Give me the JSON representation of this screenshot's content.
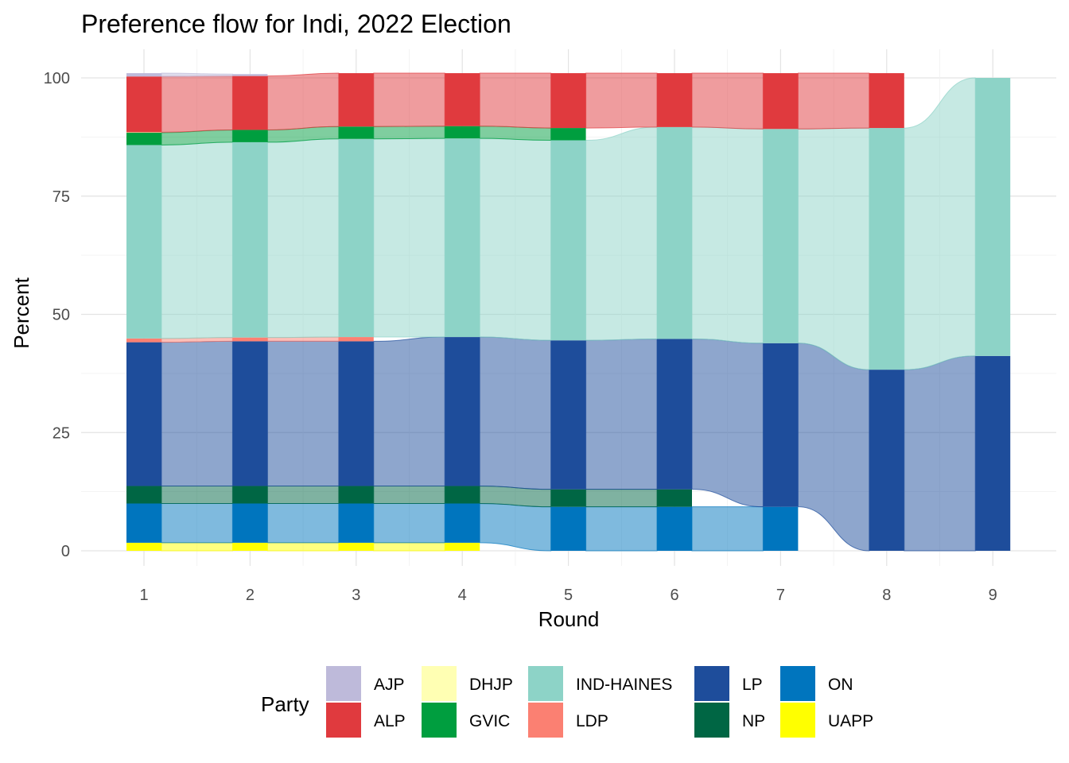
{
  "chart_data": {
    "type": "area",
    "title": "Preference flow for Indi, 2022 Election",
    "xlabel": "Round",
    "ylabel": "Percent",
    "x_ticks": [
      "1",
      "2",
      "3",
      "4",
      "5",
      "6",
      "7",
      "8",
      "9"
    ],
    "y_ticks": [
      "0",
      "25",
      "50",
      "75",
      "100"
    ],
    "ylim": [
      0,
      100
    ],
    "grid": true,
    "legend": {
      "title": "Party",
      "placement": "bottom",
      "entries": [
        {
          "name": "AJP",
          "color": "#BEBADA"
        },
        {
          "name": "ALP",
          "color": "#E03A3E"
        },
        {
          "name": "DHJP",
          "color": "#FFFFB3"
        },
        {
          "name": "GVIC",
          "color": "#009E3F"
        },
        {
          "name": "IND-HAINES",
          "color": "#8DD3C7"
        },
        {
          "name": "LDP",
          "color": "#FB8072"
        },
        {
          "name": "LP",
          "color": "#1E4D9B"
        },
        {
          "name": "NP",
          "color": "#006644"
        },
        {
          "name": "ON",
          "color": "#0075BE"
        },
        {
          "name": "UAPP",
          "color": "#FFFF00"
        }
      ]
    },
    "stack_order": [
      "UAPP",
      "ON",
      "NP",
      "LP",
      "LDP",
      "IND-HAINES",
      "GVIC",
      "DHJP",
      "ALP",
      "AJP"
    ],
    "rounds": [
      1,
      2,
      3,
      4,
      5,
      6,
      7,
      8,
      9
    ],
    "series": [
      {
        "name": "UAPP",
        "values": [
          1.7,
          1.7,
          1.7,
          1.7,
          0,
          0,
          0,
          0,
          0
        ]
      },
      {
        "name": "ON",
        "values": [
          8.3,
          8.3,
          8.3,
          8.3,
          9.3,
          9.3,
          9.3,
          0,
          0
        ]
      },
      {
        "name": "NP",
        "values": [
          3.7,
          3.7,
          3.7,
          3.7,
          3.7,
          3.7,
          0,
          0,
          0
        ]
      },
      {
        "name": "LP",
        "values": [
          30.4,
          30.6,
          30.6,
          31.5,
          31.5,
          31.8,
          34.6,
          38.3,
          41.2
        ]
      },
      {
        "name": "LDP",
        "values": [
          0.8,
          0.8,
          0.9,
          0,
          0,
          0,
          0,
          0,
          0
        ]
      },
      {
        "name": "IND-HAINES",
        "values": [
          40.9,
          41.3,
          41.9,
          42.0,
          42.3,
          44.8,
          45.3,
          51.1,
          58.8
        ]
      },
      {
        "name": "GVIC",
        "values": [
          2.6,
          2.6,
          2.6,
          2.6,
          2.6,
          0,
          0,
          0,
          0
        ]
      },
      {
        "name": "DHJP",
        "values": [
          0.1,
          0,
          0,
          0,
          0,
          0,
          0,
          0,
          0
        ]
      },
      {
        "name": "ALP",
        "values": [
          11.8,
          11.4,
          11.3,
          11.2,
          11.6,
          11.4,
          11.8,
          11.6,
          0
        ]
      },
      {
        "name": "AJP",
        "values": [
          0.7,
          0.4,
          0,
          0,
          0,
          0,
          0,
          0,
          0
        ]
      }
    ]
  }
}
